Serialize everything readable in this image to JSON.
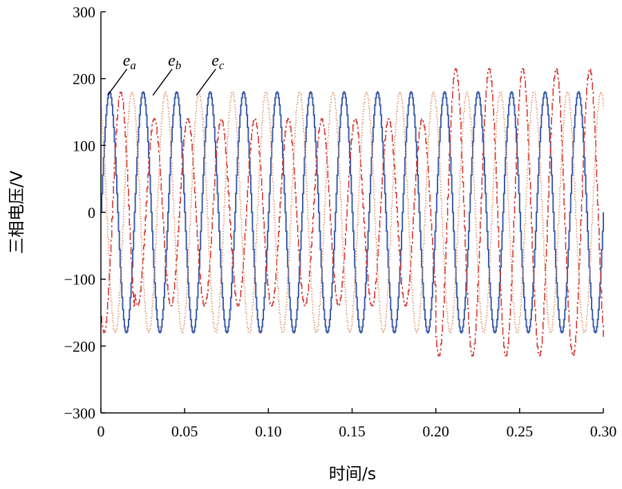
{
  "chart_data": {
    "type": "line",
    "title": "",
    "xlabel": "时间/s",
    "ylabel": "三相电压/V",
    "xlim": [
      0,
      0.3
    ],
    "ylim": [
      -300,
      300
    ],
    "x_ticks": [
      0,
      0.05,
      0.1,
      0.15,
      0.2,
      0.25,
      0.3
    ],
    "x_tick_labels": [
      "0",
      "0.05",
      "0.10",
      "0.15",
      "0.20",
      "0.25",
      "0.30"
    ],
    "y_ticks": [
      300,
      200,
      100,
      0,
      -100,
      -200,
      -300
    ],
    "y_tick_labels": [
      "300",
      "200",
      "100",
      "0",
      "−100",
      "−200",
      "−300"
    ],
    "grid": false,
    "series": [
      {
        "name": "e_a",
        "color": "#3b5ba9",
        "style": "solid",
        "frequency_hz": 50,
        "phase_deg": 0,
        "amplitude_segments": [
          {
            "x": [
              0,
              0.3
            ],
            "amplitude": 180
          }
        ]
      },
      {
        "name": "e_b",
        "color": "#d6322e",
        "style": "dashdot",
        "frequency_hz": 50,
        "phase_deg": -120,
        "amplitude_segments": [
          {
            "x": [
              0,
              0.02
            ],
            "amplitude": 180
          },
          {
            "x": [
              0.02,
              0.2
            ],
            "amplitude": 140
          },
          {
            "x": [
              0.2,
              0.3
            ],
            "amplitude": 215
          }
        ]
      },
      {
        "name": "e_c",
        "color": "#e08a60",
        "style": "dotted",
        "frequency_hz": 50,
        "phase_deg": 120,
        "amplitude_segments": [
          {
            "x": [
              0,
              0.3
            ],
            "amplitude": 180
          }
        ]
      }
    ],
    "annotations": [
      {
        "base": "e",
        "sub": "a",
        "points_to": {
          "x": 0.004,
          "y": 175
        }
      },
      {
        "base": "e",
        "sub": "b",
        "points_to": {
          "x": 0.031,
          "y": 175
        }
      },
      {
        "base": "e",
        "sub": "c",
        "points_to": {
          "x": 0.057,
          "y": 175
        }
      }
    ]
  }
}
